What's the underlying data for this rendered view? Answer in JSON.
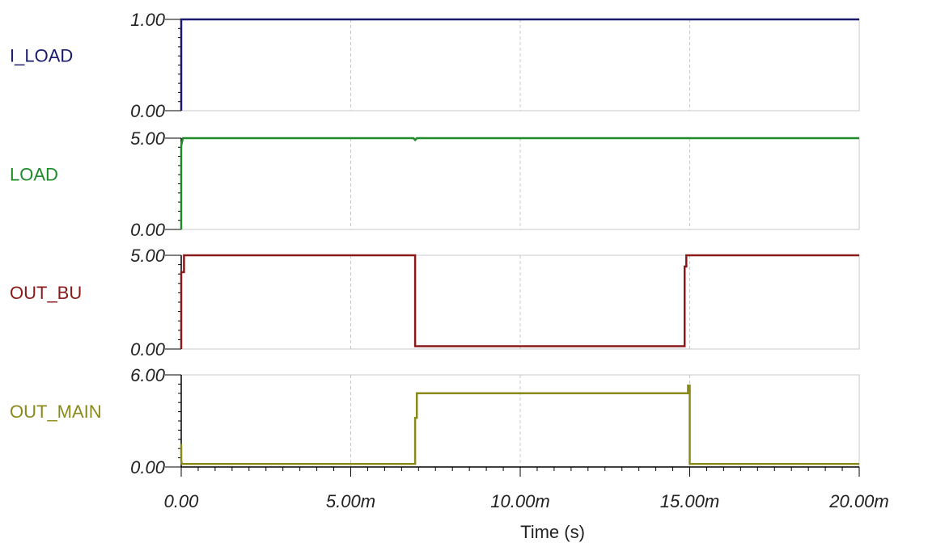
{
  "chart_data": {
    "type": "line",
    "layout": "stacked-panels",
    "x_axis": {
      "label": "Time (s)",
      "range": [
        0,
        0.02
      ],
      "ticks": [
        {
          "value": 0,
          "label": "0.00"
        },
        {
          "value": 0.005,
          "label": "5.00m"
        },
        {
          "value": 0.01,
          "label": "10.00m"
        },
        {
          "value": 0.015,
          "label": "15.00m"
        },
        {
          "value": 0.02,
          "label": "20.00m"
        }
      ]
    },
    "grid": true,
    "panels": [
      {
        "name": "I_LOAD",
        "color": "#1a1a6e",
        "ylim": [
          0,
          1
        ],
        "y_ticks": [
          "0.00",
          "1.00"
        ],
        "x": [
          0,
          0,
          0.02
        ],
        "y": [
          0,
          1,
          1
        ]
      },
      {
        "name": "LOAD",
        "color": "#1e8a2a",
        "ylim": [
          0,
          5
        ],
        "y_ticks": [
          "0.00",
          "5.00"
        ],
        "x": [
          0,
          0,
          5e-05,
          0.00685,
          0.0069,
          0.00695,
          0.02
        ],
        "y": [
          0,
          4.6,
          5.0,
          5.0,
          4.9,
          5.0,
          5.0
        ]
      },
      {
        "name": "OUT_BU",
        "color": "#8a1a1a",
        "ylim": [
          0,
          5
        ],
        "y_ticks": [
          "0.00",
          "5.00"
        ],
        "x": [
          0,
          0,
          8e-05,
          8e-05,
          0.0069,
          0.0069,
          0.01485,
          0.01485,
          0.0149,
          0.0149,
          0.02
        ],
        "y": [
          0,
          4.1,
          4.1,
          5.0,
          5.0,
          0.15,
          0.15,
          4.4,
          4.4,
          5.0,
          5.0
        ]
      },
      {
        "name": "OUT_MAIN",
        "color": "#8a8a1a",
        "ylim": [
          0,
          6
        ],
        "y_ticks": [
          "0.00",
          "6.00"
        ],
        "x": [
          0,
          0,
          2e-05,
          5e-05,
          0.0069,
          0.0069,
          0.00695,
          0.00695,
          0.01495,
          0.01495,
          0.015,
          0.015,
          0.02
        ],
        "y": [
          1.5,
          0.4,
          0.2,
          0.2,
          0.2,
          3.2,
          3.2,
          4.8,
          4.8,
          5.3,
          5.3,
          0.2,
          0.2
        ]
      }
    ]
  }
}
